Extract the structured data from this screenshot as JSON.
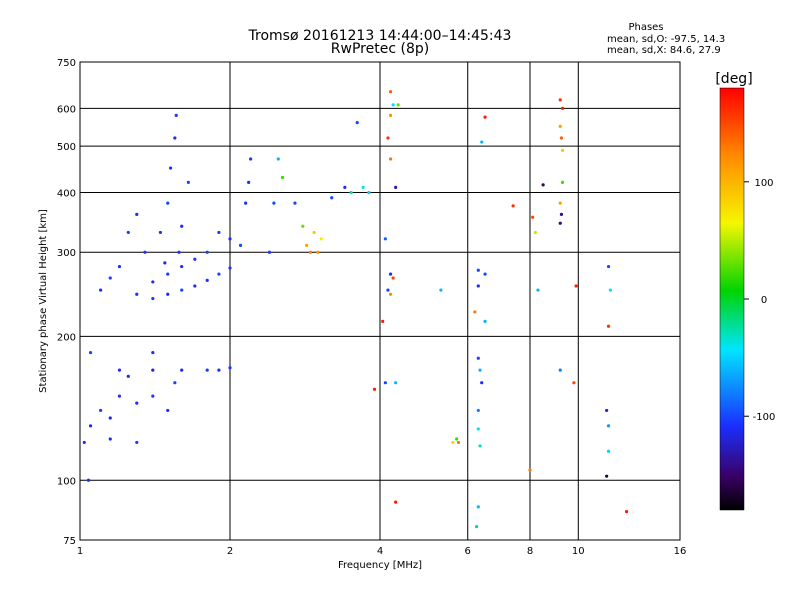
{
  "chart_data": {
    "type": "scatter",
    "title": "Tromsø 20161213 14:44:00–14:45:43",
    "subtitle": "RwPretec (8p)",
    "xlabel": "Frequency [MHz]",
    "ylabel": "Stationary phase Virtual Height [km]",
    "x_scale": "log",
    "y_scale": "log",
    "xlim": [
      1,
      16
    ],
    "ylim": [
      75,
      750
    ],
    "x_ticks": [
      1,
      2,
      4,
      6,
      8,
      10,
      16
    ],
    "x_tick_labels": [
      "1",
      "2",
      "4",
      "6",
      "8",
      "10",
      "16"
    ],
    "y_ticks": [
      75,
      100,
      200,
      300,
      400,
      500,
      600,
      750
    ],
    "y_tick_labels": [
      "75",
      "100",
      "200",
      "300",
      "400",
      "500",
      "600",
      "750"
    ],
    "grid": true,
    "legend": {
      "title": "Phases",
      "lines": [
        "mean, sd,O: -97.5, 14.3",
        "mean, sd,X:  84.6, 27.9"
      ],
      "position": "top-right"
    },
    "colorbar": {
      "label": "[deg]",
      "range": [
        -180,
        180
      ],
      "ticks": [
        100,
        0,
        -100
      ],
      "tick_labels": [
        "100",
        "0",
        "-100"
      ],
      "colormap": "rainbow"
    },
    "points": [
      [
        1.4,
        240,
        -105
      ],
      [
        1.5,
        245,
        -110
      ],
      [
        1.6,
        250,
        -100
      ],
      [
        1.7,
        255,
        -108
      ],
      [
        1.8,
        262,
        -112
      ],
      [
        1.9,
        270,
        -100
      ],
      [
        2.0,
        278,
        -105
      ],
      [
        1.3,
        245,
        -108
      ],
      [
        1.4,
        260,
        -112
      ],
      [
        1.5,
        270,
        -103
      ],
      [
        1.6,
        280,
        -110
      ],
      [
        1.7,
        290,
        -105
      ],
      [
        1.8,
        300,
        -100
      ],
      [
        1.35,
        300,
        -105
      ],
      [
        1.45,
        330,
        -110
      ],
      [
        1.5,
        380,
        -100
      ],
      [
        1.52,
        450,
        -108
      ],
      [
        1.55,
        520,
        -112
      ],
      [
        1.56,
        580,
        -105
      ],
      [
        1.6,
        340,
        -110
      ],
      [
        1.65,
        420,
        -100
      ],
      [
        1.58,
        300,
        -106
      ],
      [
        1.48,
        285,
        -112
      ],
      [
        1.2,
        280,
        -108
      ],
      [
        1.25,
        330,
        -104
      ],
      [
        1.3,
        360,
        -110
      ],
      [
        1.15,
        265,
        -102
      ],
      [
        1.1,
        250,
        -108
      ],
      [
        1.9,
        330,
        -105
      ],
      [
        2.0,
        320,
        -110
      ],
      [
        2.1,
        310,
        -100
      ],
      [
        2.15,
        380,
        -108
      ],
      [
        2.2,
        470,
        -105
      ],
      [
        2.18,
        420,
        -110
      ],
      [
        2.4,
        300,
        -104
      ],
      [
        2.45,
        380,
        -100
      ],
      [
        2.5,
        470,
        -60
      ],
      [
        2.55,
        430,
        20
      ],
      [
        2.7,
        380,
        -100
      ],
      [
        2.8,
        340,
        30
      ],
      [
        2.85,
        310,
        110
      ],
      [
        2.95,
        330,
        90
      ],
      [
        3.0,
        300,
        120
      ],
      [
        3.05,
        320,
        70
      ],
      [
        2.9,
        300,
        130
      ],
      [
        3.2,
        390,
        -100
      ],
      [
        3.4,
        410,
        -108
      ],
      [
        3.5,
        400,
        -30
      ],
      [
        3.7,
        410,
        -40
      ],
      [
        3.8,
        400,
        -50
      ],
      [
        3.6,
        560,
        -100
      ],
      [
        1.02,
        120,
        -110
      ],
      [
        1.05,
        130,
        -108
      ],
      [
        1.1,
        140,
        -104
      ],
      [
        1.15,
        135,
        -112
      ],
      [
        1.2,
        150,
        -106
      ],
      [
        1.3,
        145,
        -110
      ],
      [
        1.4,
        150,
        -104
      ],
      [
        1.5,
        140,
        -108
      ],
      [
        1.55,
        160,
        -100
      ],
      [
        1.2,
        170,
        -108
      ],
      [
        1.4,
        170,
        -120
      ],
      [
        1.6,
        170,
        -112
      ],
      [
        1.8,
        170,
        -105
      ],
      [
        1.9,
        170,
        -110
      ],
      [
        2.0,
        172,
        -105
      ],
      [
        1.4,
        185,
        -108
      ],
      [
        1.05,
        185,
        -100
      ],
      [
        1.04,
        100,
        -108
      ],
      [
        1.15,
        122,
        -110
      ],
      [
        1.3,
        120,
        -104
      ],
      [
        1.25,
        165,
        -112
      ],
      [
        4.2,
        650,
        140
      ],
      [
        4.25,
        610,
        -40
      ],
      [
        4.35,
        610,
        30
      ],
      [
        4.2,
        580,
        120
      ],
      [
        4.15,
        520,
        160
      ],
      [
        4.2,
        470,
        130
      ],
      [
        4.1,
        320,
        -90
      ],
      [
        4.15,
        250,
        -100
      ],
      [
        4.2,
        270,
        -110
      ],
      [
        4.25,
        265,
        150
      ],
      [
        4.2,
        245,
        120
      ],
      [
        4.05,
        215,
        170
      ],
      [
        4.1,
        160,
        -100
      ],
      [
        4.3,
        160,
        -60
      ],
      [
        3.9,
        155,
        170
      ],
      [
        4.3,
        90,
        170
      ],
      [
        4.3,
        410,
        -130
      ],
      [
        5.3,
        250,
        -60
      ],
      [
        5.6,
        120,
        80
      ],
      [
        5.7,
        122,
        20
      ],
      [
        5.75,
        120,
        130
      ],
      [
        6.3,
        275,
        -100
      ],
      [
        6.3,
        255,
        -110
      ],
      [
        6.2,
        225,
        130
      ],
      [
        6.5,
        215,
        -60
      ],
      [
        6.3,
        180,
        -100
      ],
      [
        6.35,
        170,
        -60
      ],
      [
        6.4,
        160,
        -110
      ],
      [
        6.3,
        140,
        -80
      ],
      [
        6.3,
        128,
        -40
      ],
      [
        6.35,
        118,
        -30
      ],
      [
        6.3,
        88,
        -60
      ],
      [
        6.25,
        80,
        -20
      ],
      [
        6.5,
        575,
        170
      ],
      [
        6.4,
        510,
        -60
      ],
      [
        6.5,
        270,
        -100
      ],
      [
        7.4,
        375,
        160
      ],
      [
        8.1,
        355,
        150
      ],
      [
        8.2,
        330,
        50
      ],
      [
        8.0,
        105,
        130
      ],
      [
        8.3,
        250,
        -60
      ],
      [
        8.5,
        415,
        -150
      ],
      [
        9.2,
        625,
        160
      ],
      [
        9.3,
        600,
        170
      ],
      [
        9.2,
        550,
        110
      ],
      [
        9.25,
        520,
        140
      ],
      [
        9.3,
        490,
        90
      ],
      [
        9.2,
        380,
        110
      ],
      [
        9.25,
        360,
        -140
      ],
      [
        9.2,
        345,
        -145
      ],
      [
        9.3,
        420,
        20
      ],
      [
        9.2,
        170,
        -80
      ],
      [
        9.8,
        160,
        150
      ],
      [
        9.9,
        255,
        170
      ],
      [
        11.5,
        280,
        -100
      ],
      [
        11.6,
        250,
        -40
      ],
      [
        11.5,
        210,
        160
      ],
      [
        11.4,
        140,
        -120
      ],
      [
        11.5,
        130,
        -70
      ],
      [
        11.5,
        115,
        -50
      ],
      [
        11.4,
        102,
        -160
      ],
      [
        12.5,
        86,
        170
      ]
    ]
  }
}
